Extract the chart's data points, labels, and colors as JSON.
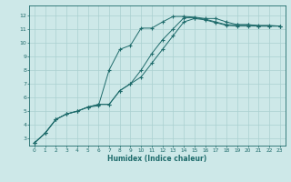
{
  "xlabel": "Humidex (Indice chaleur)",
  "xlim": [
    -0.5,
    23.5
  ],
  "ylim": [
    2.5,
    12.7
  ],
  "xticks": [
    0,
    1,
    2,
    3,
    4,
    5,
    6,
    7,
    8,
    9,
    10,
    11,
    12,
    13,
    14,
    15,
    16,
    17,
    18,
    19,
    20,
    21,
    22,
    23
  ],
  "yticks": [
    3,
    4,
    5,
    6,
    7,
    8,
    9,
    10,
    11,
    12
  ],
  "bg_color": "#cde8e8",
  "grid_color": "#aad0d0",
  "line_color": "#1e6b6b",
  "line1_x": [
    0,
    1,
    2,
    3,
    4,
    5,
    6,
    7,
    8,
    9,
    10,
    11,
    12,
    13,
    14,
    15,
    16,
    17,
    18,
    19,
    20,
    21,
    22,
    23
  ],
  "line1_y": [
    2.7,
    3.4,
    4.4,
    4.8,
    5.0,
    5.3,
    5.4,
    8.0,
    9.5,
    9.8,
    11.05,
    11.05,
    11.5,
    11.9,
    11.9,
    11.85,
    11.75,
    11.75,
    11.5,
    11.3,
    11.3,
    11.25,
    11.25,
    11.2
  ],
  "line2_x": [
    0,
    1,
    2,
    3,
    4,
    5,
    6,
    7,
    8,
    9,
    10,
    11,
    12,
    13,
    14,
    15,
    16,
    17,
    18,
    19,
    20,
    21,
    22,
    23
  ],
  "line2_y": [
    2.7,
    3.4,
    4.4,
    4.8,
    5.0,
    5.3,
    5.5,
    5.5,
    6.5,
    7.0,
    8.0,
    9.2,
    10.2,
    11.0,
    11.8,
    11.8,
    11.7,
    11.5,
    11.3,
    11.3,
    11.3,
    11.2,
    11.2,
    11.2
  ],
  "line3_x": [
    0,
    1,
    2,
    3,
    4,
    5,
    6,
    7,
    8,
    9,
    10,
    11,
    12,
    13,
    14,
    15,
    16,
    17,
    18,
    19,
    20,
    21,
    22,
    23
  ],
  "line3_y": [
    2.7,
    3.4,
    4.4,
    4.8,
    5.0,
    5.3,
    5.5,
    5.5,
    6.5,
    7.0,
    7.5,
    8.5,
    9.5,
    10.5,
    11.5,
    11.75,
    11.65,
    11.45,
    11.25,
    11.2,
    11.2,
    11.2,
    11.2,
    11.2
  ]
}
